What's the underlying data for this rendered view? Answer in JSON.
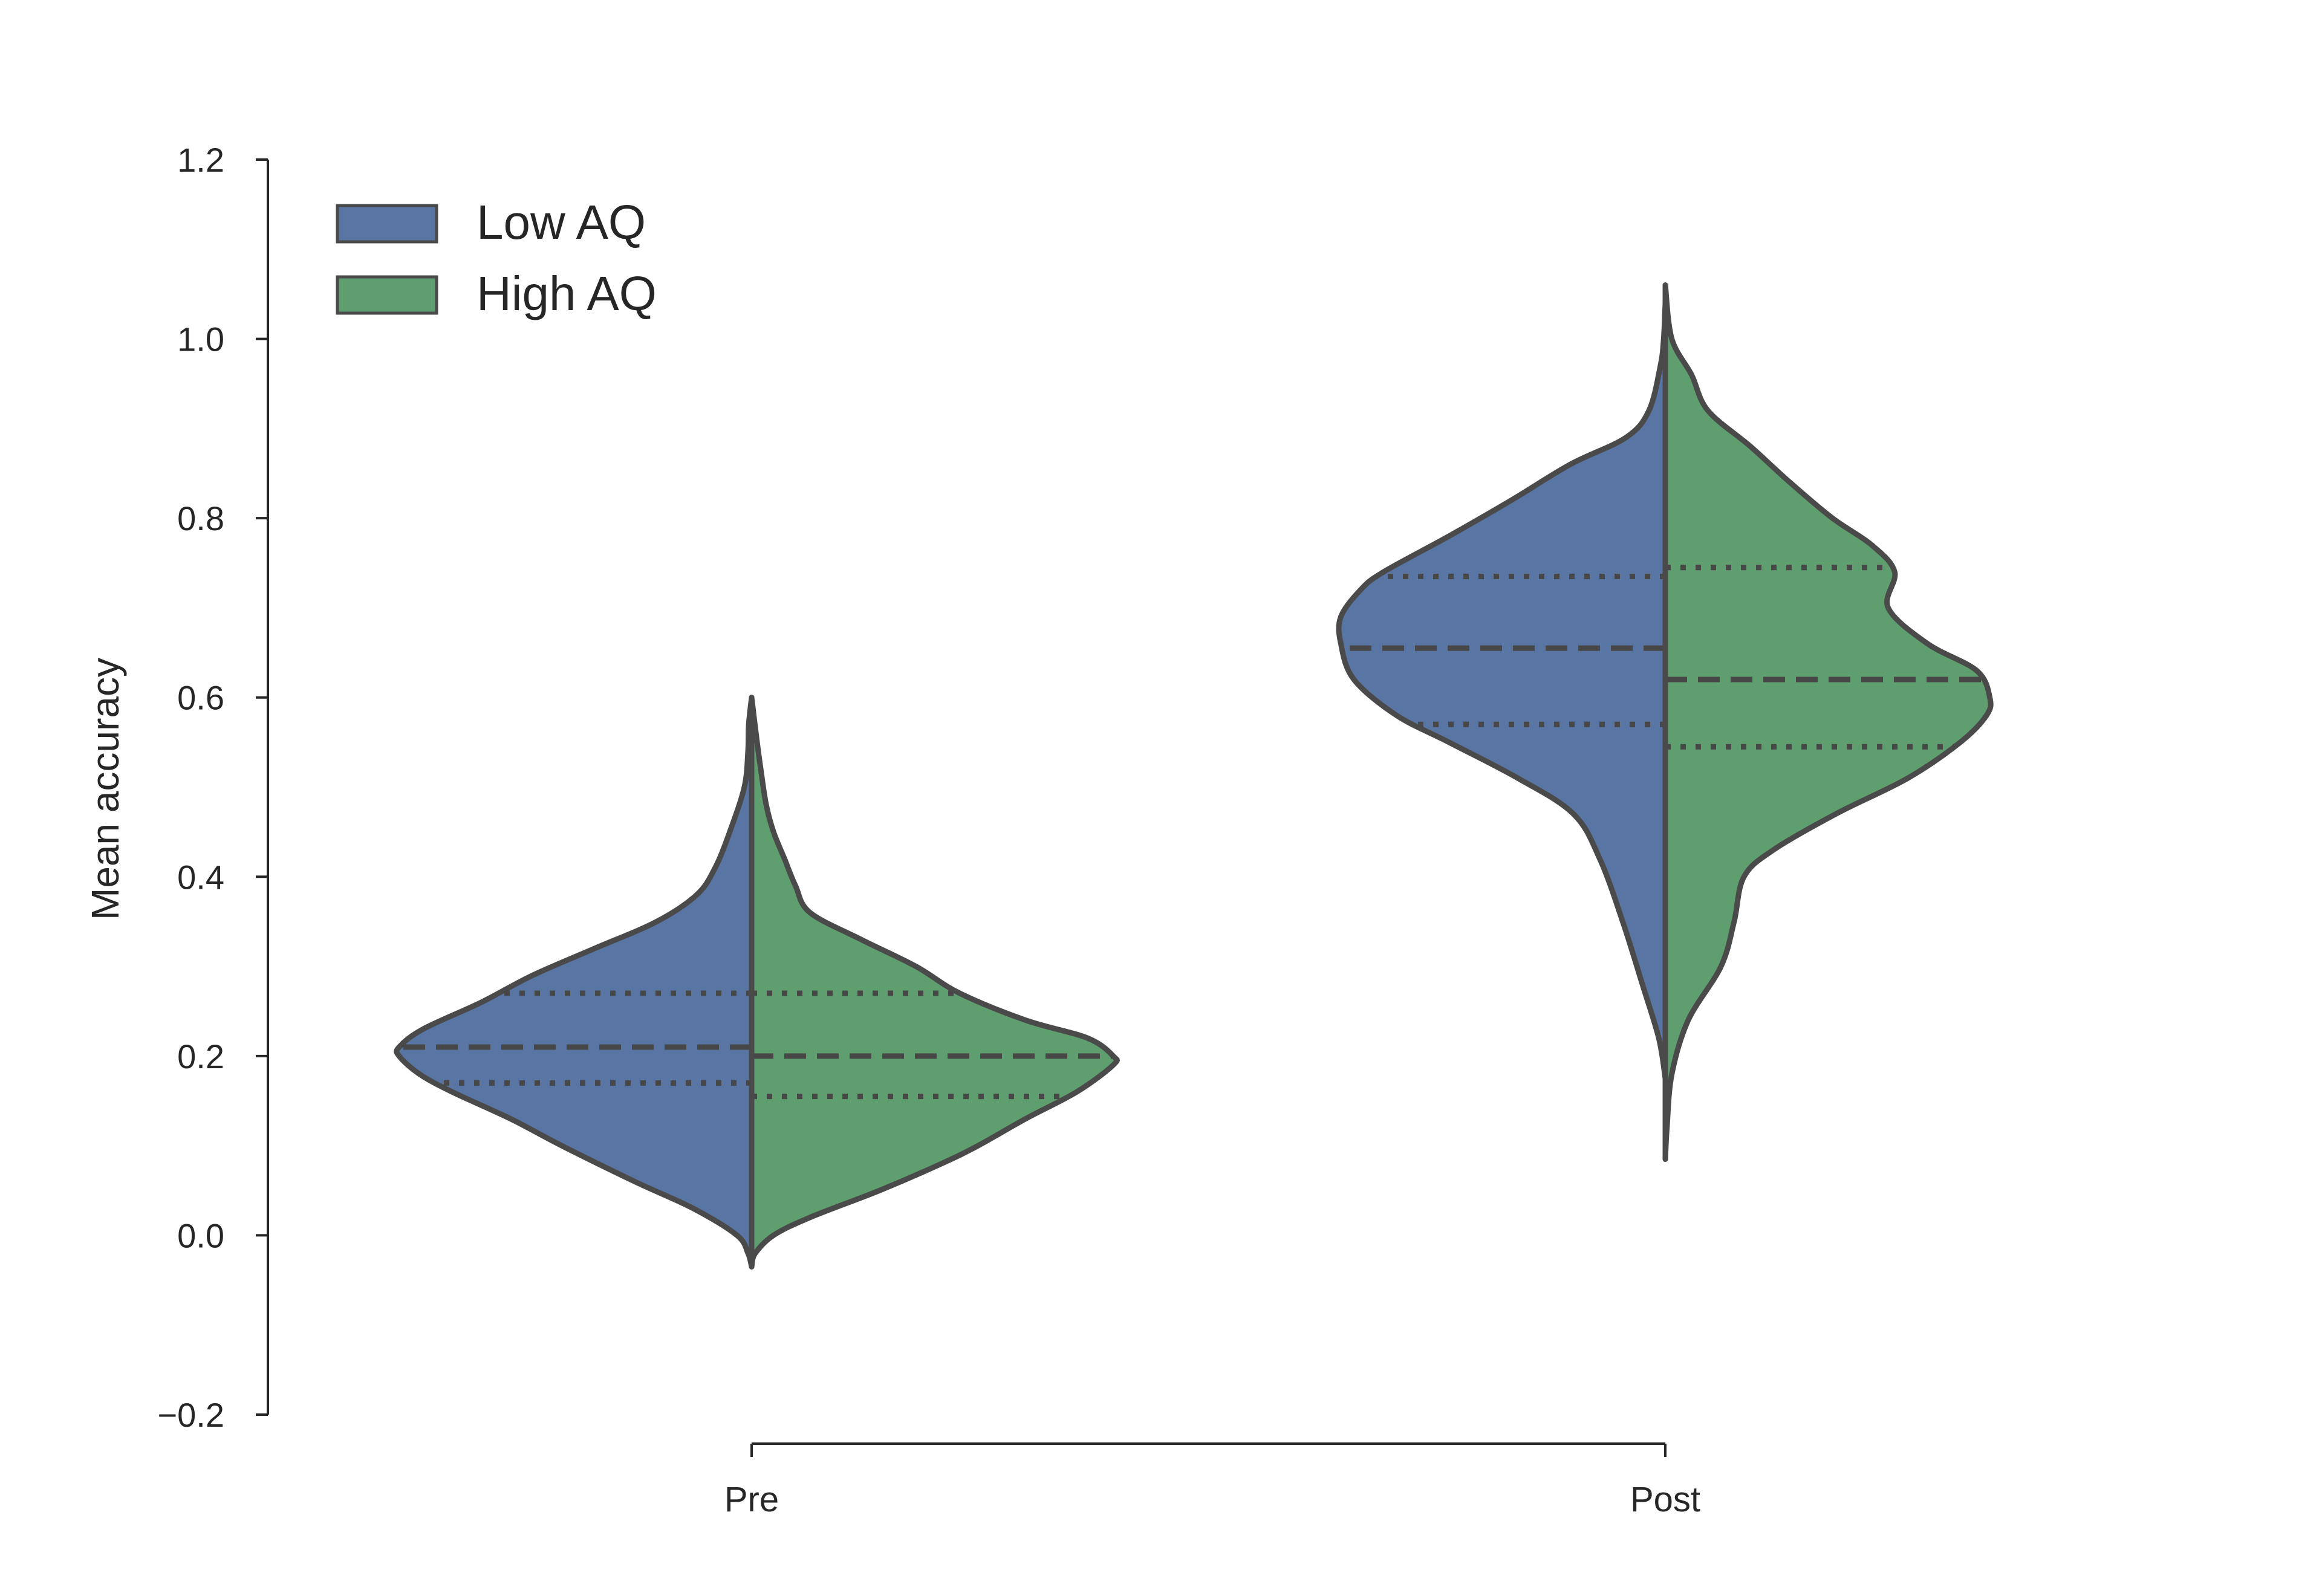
{
  "chart_data": {
    "type": "violin",
    "split": true,
    "title": "",
    "xlabel": "",
    "ylabel": "Mean accuracy",
    "ylim": [
      -0.2,
      1.2
    ],
    "yticks": [
      -0.2,
      0.0,
      0.2,
      0.4,
      0.6,
      0.8,
      1.0,
      1.2
    ],
    "ytick_labels": [
      "−0.2",
      "0.0",
      "0.2",
      "0.4",
      "0.6",
      "0.8",
      "1.0",
      "1.2"
    ],
    "categories": [
      "Pre",
      "Post"
    ],
    "legend": {
      "placement": "top-left"
    },
    "grid": false,
    "series": [
      {
        "name": "Low AQ",
        "side": "left",
        "color": "#5875a4",
        "violins": [
          {
            "category": "Pre",
            "quartiles": [
              0.17,
              0.21,
              0.27
            ],
            "density": [
              [
                -0.035,
                0.0
              ],
              [
                -0.02,
                0.01
              ],
              [
                0.0,
                0.04
              ],
              [
                0.03,
                0.16
              ],
              [
                0.06,
                0.32
              ],
              [
                0.1,
                0.52
              ],
              [
                0.13,
                0.66
              ],
              [
                0.16,
                0.82
              ],
              [
                0.18,
                0.91
              ],
              [
                0.2,
                0.965
              ],
              [
                0.21,
                0.965
              ],
              [
                0.23,
                0.9
              ],
              [
                0.26,
                0.74
              ],
              [
                0.29,
                0.6
              ],
              [
                0.32,
                0.43
              ],
              [
                0.35,
                0.26
              ],
              [
                0.38,
                0.15
              ],
              [
                0.41,
                0.1
              ],
              [
                0.45,
                0.06
              ],
              [
                0.5,
                0.02
              ],
              [
                0.54,
                0.01
              ],
              [
                0.57,
                0.008
              ],
              [
                0.6,
                0.0
              ]
            ]
          },
          {
            "category": "Post",
            "quartiles": [
              0.57,
              0.655,
              0.735
            ],
            "density": [
              [
                0.175,
                0.0
              ],
              [
                0.22,
                0.02
              ],
              [
                0.28,
                0.07
              ],
              [
                0.35,
                0.13
              ],
              [
                0.42,
                0.2
              ],
              [
                0.47,
                0.28
              ],
              [
                0.51,
                0.45
              ],
              [
                0.55,
                0.66
              ],
              [
                0.58,
                0.82
              ],
              [
                0.62,
                0.95
              ],
              [
                0.66,
                0.99
              ],
              [
                0.69,
                0.99
              ],
              [
                0.72,
                0.93
              ],
              [
                0.74,
                0.86
              ],
              [
                0.78,
                0.66
              ],
              [
                0.82,
                0.47
              ],
              [
                0.86,
                0.29
              ],
              [
                0.89,
                0.12
              ],
              [
                0.92,
                0.05
              ],
              [
                0.97,
                0.015
              ],
              [
                1.0,
                0.005
              ],
              [
                1.04,
                0.0
              ]
            ]
          }
        ]
      },
      {
        "name": "High AQ",
        "side": "right",
        "color": "#5f9e6e",
        "violins": [
          {
            "category": "Pre",
            "quartiles": [
              0.155,
              0.2,
              0.27
            ],
            "density": [
              [
                -0.035,
                0.0
              ],
              [
                -0.02,
                0.01
              ],
              [
                0.0,
                0.06
              ],
              [
                0.02,
                0.16
              ],
              [
                0.05,
                0.35
              ],
              [
                0.08,
                0.52
              ],
              [
                0.1,
                0.62
              ],
              [
                0.13,
                0.75
              ],
              [
                0.16,
                0.89
              ],
              [
                0.19,
                0.99
              ],
              [
                0.2,
                0.99
              ],
              [
                0.22,
                0.92
              ],
              [
                0.24,
                0.75
              ],
              [
                0.27,
                0.57
              ],
              [
                0.3,
                0.45
              ],
              [
                0.33,
                0.3
              ],
              [
                0.36,
                0.16
              ],
              [
                0.39,
                0.12
              ],
              [
                0.42,
                0.09
              ],
              [
                0.45,
                0.06
              ],
              [
                0.48,
                0.04
              ],
              [
                0.52,
                0.025
              ],
              [
                0.55,
                0.015
              ],
              [
                0.6,
                0.0
              ]
            ]
          },
          {
            "category": "Post",
            "quartiles": [
              0.545,
              0.62,
              0.745
            ],
            "density": [
              [
                0.085,
                0.0
              ],
              [
                0.12,
                0.005
              ],
              [
                0.18,
                0.02
              ],
              [
                0.24,
                0.07
              ],
              [
                0.3,
                0.17
              ],
              [
                0.35,
                0.21
              ],
              [
                0.4,
                0.24
              ],
              [
                0.43,
                0.33
              ],
              [
                0.47,
                0.52
              ],
              [
                0.51,
                0.74
              ],
              [
                0.55,
                0.9
              ],
              [
                0.58,
                0.98
              ],
              [
                0.6,
                0.99
              ],
              [
                0.63,
                0.95
              ],
              [
                0.66,
                0.8
              ],
              [
                0.7,
                0.68
              ],
              [
                0.74,
                0.7
              ],
              [
                0.77,
                0.63
              ],
              [
                0.8,
                0.51
              ],
              [
                0.84,
                0.38
              ],
              [
                0.88,
                0.26
              ],
              [
                0.92,
                0.13
              ],
              [
                0.96,
                0.08
              ],
              [
                1.0,
                0.02
              ],
              [
                1.06,
                0.0
              ]
            ]
          }
        ]
      }
    ]
  }
}
